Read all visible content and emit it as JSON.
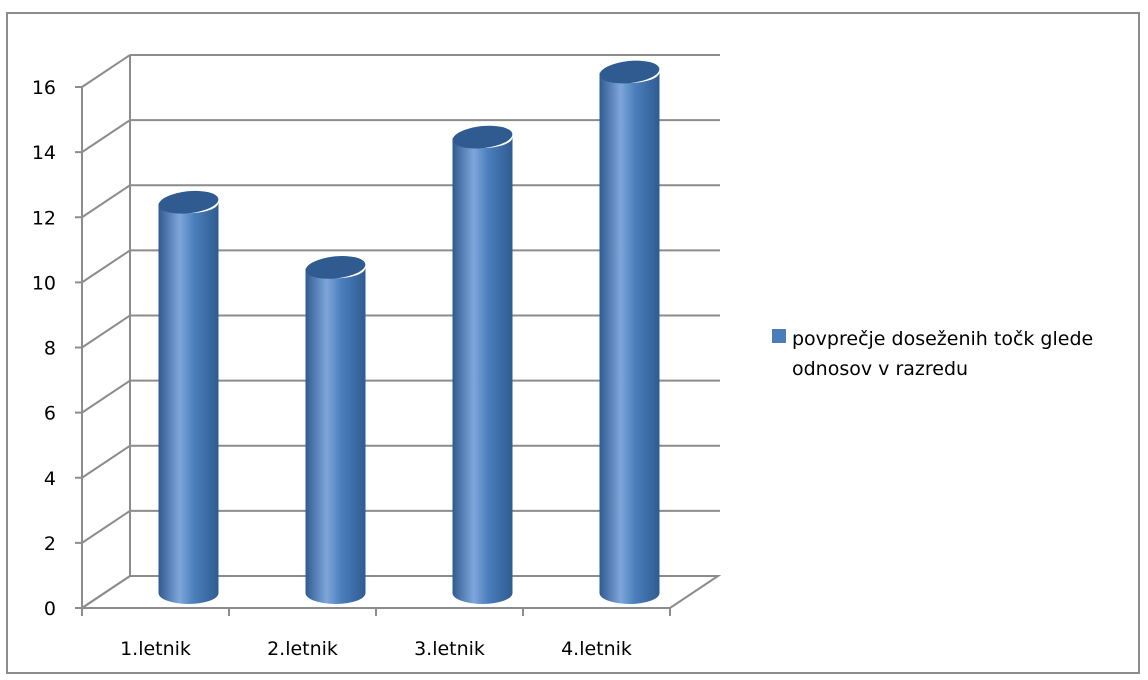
{
  "chart_data": {
    "type": "bar",
    "categories": [
      "1.letnik",
      "2.letnik",
      "3.letnik",
      "4.letnik"
    ],
    "series": [
      {
        "name": "povprečje doseženih točk glede odnosov v razredu",
        "values": [
          12,
          10,
          14,
          16
        ]
      }
    ],
    "ylim": [
      0,
      16
    ],
    "yticks": [
      0,
      2,
      4,
      6,
      8,
      10,
      12,
      14,
      16
    ],
    "grid": true,
    "legend_position": "right",
    "bar_shape": "cylinder",
    "colors": {
      "bar": "#4a7ebb",
      "bar_dark": "#2f5b91",
      "bar_light": "#7ea6db",
      "grid": "#8c8c8c",
      "legend_swatch": "#4a7ebb"
    }
  }
}
